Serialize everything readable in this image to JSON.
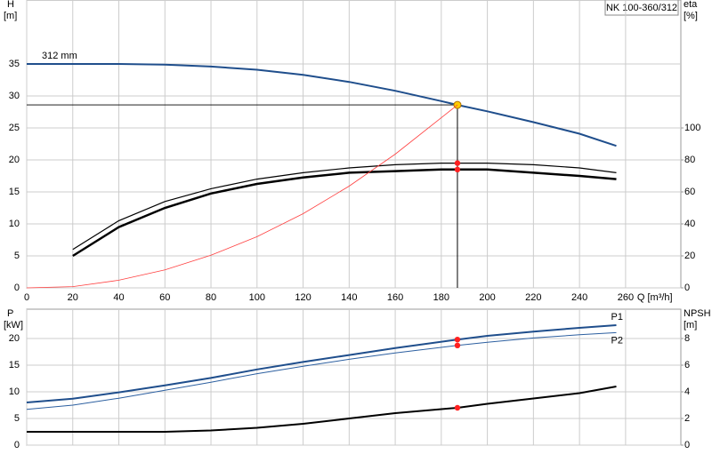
{
  "chart_data": [
    {
      "type": "line",
      "title": "NK 100-360/312",
      "xlabel": "Q [m³/h]",
      "ylabel": "H",
      "yunit": "[m]",
      "y2label": "eta",
      "y2unit": "[%]",
      "xlim": [
        0,
        284
      ],
      "xticks": [
        0,
        20,
        40,
        60,
        80,
        100,
        120,
        140,
        160,
        180,
        200,
        220,
        240,
        260
      ],
      "ylim": [
        0,
        45
      ],
      "yticks": [
        0,
        5,
        10,
        15,
        20,
        25,
        30,
        35
      ],
      "y2lim": [
        0,
        180
      ],
      "y2ticks": [
        0,
        20,
        40,
        60,
        80,
        100
      ],
      "grid": true,
      "operating_point": {
        "x": 187,
        "y": 28.6
      },
      "series": [
        {
          "name": "312 mm",
          "color": "#1f4e8c",
          "width": 2,
          "point_color": "#ffcc00",
          "x": [
            0,
            20,
            40,
            60,
            80,
            100,
            120,
            140,
            160,
            180,
            187,
            200,
            220,
            240,
            256
          ],
          "values": [
            35,
            35,
            35,
            34.9,
            34.6,
            34.1,
            33.3,
            32.2,
            30.8,
            29.2,
            28.6,
            27.6,
            25.9,
            24.1,
            22.2
          ]
        },
        {
          "color": "#000000",
          "width": 1.2,
          "axis": "y2",
          "point_color": "#ff2020",
          "x": [
            20,
            40,
            60,
            80,
            100,
            120,
            140,
            160,
            180,
            187,
            200,
            220,
            240,
            256
          ],
          "values": [
            24,
            42,
            54,
            62,
            68,
            72,
            75,
            77,
            78,
            78,
            78,
            77,
            75,
            72
          ]
        },
        {
          "color": "#000000",
          "width": 2.5,
          "axis": "y2",
          "point_color": "#ff2020",
          "x": [
            20,
            40,
            60,
            80,
            100,
            120,
            140,
            160,
            180,
            187,
            200,
            220,
            240,
            256
          ],
          "values": [
            20,
            38,
            50,
            59,
            65,
            69,
            72,
            73,
            74,
            74,
            74,
            72,
            70,
            68
          ]
        },
        {
          "color": "#ff4040",
          "width": 0.8,
          "x": [
            0,
            20,
            40,
            60,
            80,
            100,
            120,
            140,
            160,
            187
          ],
          "values": [
            0,
            0.2,
            1.2,
            2.8,
            5.1,
            8,
            11.6,
            15.9,
            20.9,
            28.6
          ]
        }
      ]
    },
    {
      "type": "line",
      "ylabel": "P",
      "yunit": "[kW]",
      "y2label": "NPSH",
      "y2unit": "[m]",
      "ylim": [
        0,
        25.5
      ],
      "yticks": [
        0,
        5,
        10,
        15,
        20
      ],
      "y2lim": [
        0,
        10.2
      ],
      "y2ticks": [
        0,
        2,
        4,
        6,
        8
      ],
      "grid": true,
      "series": [
        {
          "name": "P1",
          "color": "#1f4e8c",
          "width": 2,
          "point_color": "#ff2020",
          "x": [
            0,
            20,
            40,
            60,
            80,
            100,
            120,
            140,
            160,
            187,
            200,
            220,
            240,
            256
          ],
          "values": [
            8,
            8.7,
            9.9,
            11.2,
            12.6,
            14.2,
            15.6,
            16.9,
            18.2,
            19.8,
            20.5,
            21.3,
            22,
            22.5
          ]
        },
        {
          "name": "P2",
          "color": "#2c5fa0",
          "width": 1,
          "point_color": "#ff2020",
          "x": [
            0,
            20,
            40,
            60,
            80,
            100,
            120,
            140,
            160,
            187,
            200,
            220,
            240,
            256
          ],
          "values": [
            6.7,
            7.5,
            8.8,
            10.3,
            11.8,
            13.4,
            14.8,
            16.1,
            17.3,
            18.7,
            19.3,
            20.1,
            20.7,
            21.1
          ]
        },
        {
          "color": "#000000",
          "width": 2,
          "axis": "y2",
          "point_color": "#ff2020",
          "x": [
            0,
            20,
            40,
            60,
            80,
            100,
            120,
            140,
            160,
            187,
            200,
            220,
            240,
            256
          ],
          "values": [
            1,
            1,
            1,
            1,
            1.1,
            1.3,
            1.6,
            2,
            2.4,
            2.8,
            3.1,
            3.5,
            3.9,
            4.4
          ]
        }
      ]
    }
  ]
}
